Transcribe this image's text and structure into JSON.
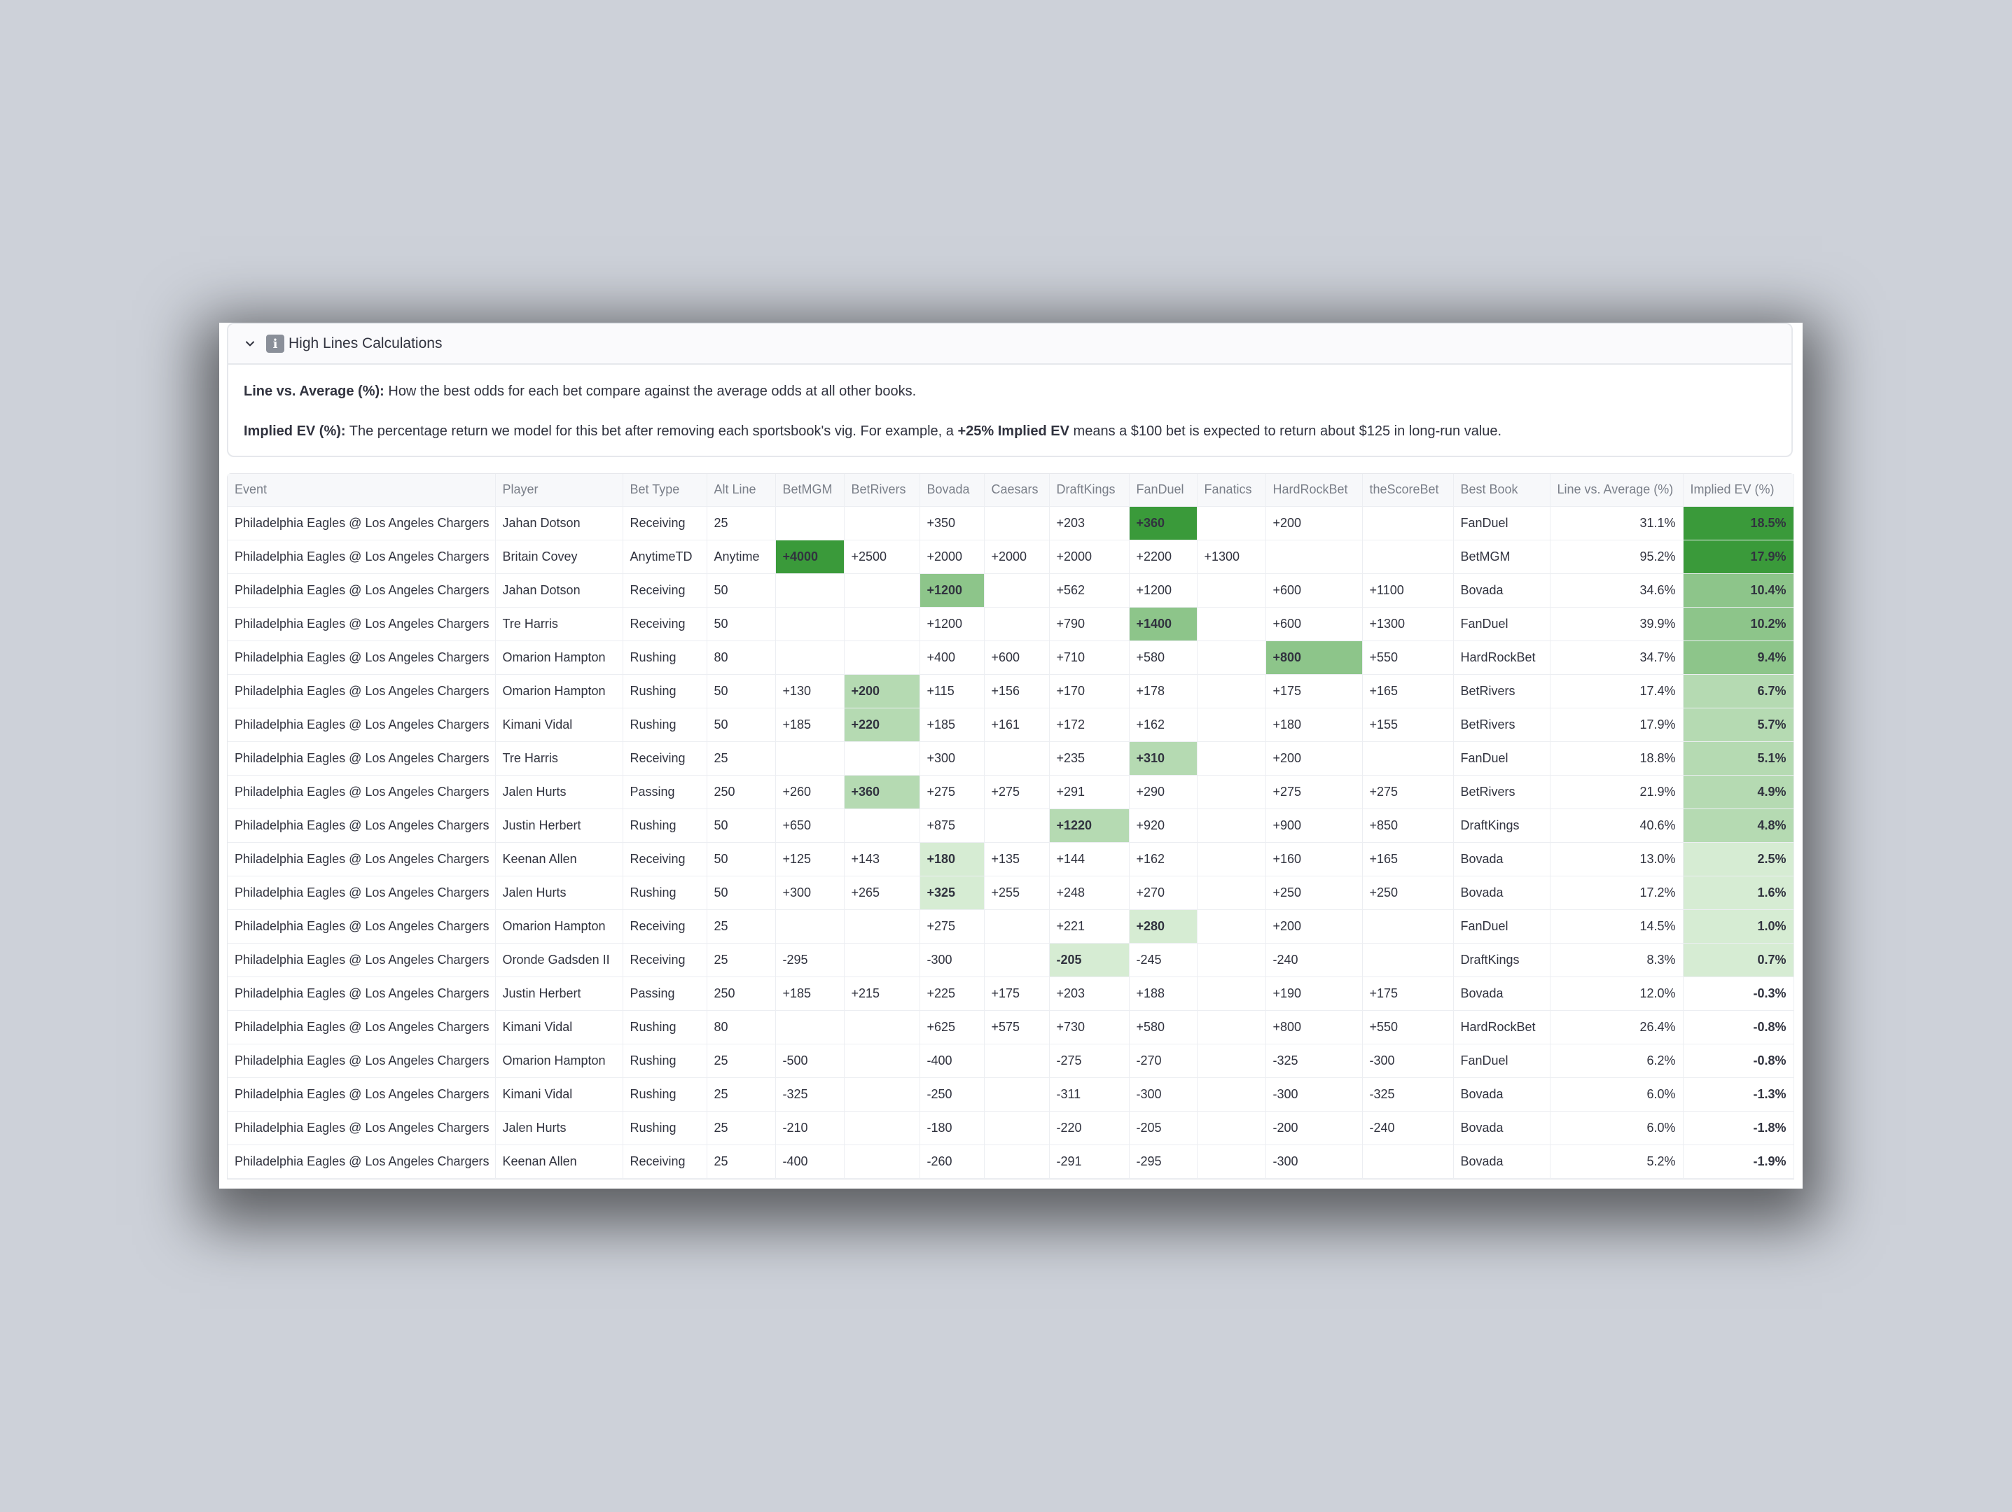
{
  "expander": {
    "title": "High Lines Calculations",
    "icon": "info-icon",
    "line_avg_label": "Line vs. Average (%):",
    "line_avg_text": " How the best odds for each bet compare against the average odds at all other books.",
    "ev_label": "Implied EV (%):",
    "ev_text_1": " The percentage return we model for this bet after removing each sportsbook's vig. For example, a ",
    "ev_text_bold": "+25% Implied EV",
    "ev_text_2": " means a $100 bet is expected to return about $125 in long-run value."
  },
  "table": {
    "columns": [
      "Event",
      "Player",
      "Bet Type",
      "Alt Line",
      "BetMGM",
      "BetRivers",
      "Bovada",
      "Caesars",
      "DraftKings",
      "FanDuel",
      "Fanatics",
      "HardRockBet",
      "theScoreBet",
      "Best Book",
      "Line vs. Average (%)",
      "Implied EV (%)"
    ],
    "book_columns": [
      "BetMGM",
      "BetRivers",
      "Bovada",
      "Caesars",
      "DraftKings",
      "FanDuel",
      "Fanatics",
      "HardRockBet",
      "theScoreBet"
    ],
    "highlight_colors": {
      "dark": "#3a9a3a",
      "medium": "#8dc58a",
      "light": "#b5dab2",
      "pale": "#d6ecd3"
    },
    "rows": [
      {
        "cells": [
          "Philadelphia Eagles @ Los Angeles Chargers",
          "Jahan Dotson",
          "Receiving",
          "25",
          "",
          "",
          "+350",
          "",
          "+203",
          "+360",
          "",
          "+200",
          "",
          "FanDuel",
          "31.1%",
          "18.5%"
        ],
        "best": 9,
        "best_level": "dark",
        "ev_level": "dark"
      },
      {
        "cells": [
          "Philadelphia Eagles @ Los Angeles Chargers",
          "Britain Covey",
          "AnytimeTD",
          "Anytime",
          "+4000",
          "+2500",
          "+2000",
          "+2000",
          "+2000",
          "+2200",
          "+1300",
          "",
          "",
          "BetMGM",
          "95.2%",
          "17.9%"
        ],
        "best": 4,
        "best_level": "dark",
        "ev_level": "dark"
      },
      {
        "cells": [
          "Philadelphia Eagles @ Los Angeles Chargers",
          "Jahan Dotson",
          "Receiving",
          "50",
          "",
          "",
          "+1200",
          "",
          "+562",
          "+1200",
          "",
          "+600",
          "+1100",
          "Bovada",
          "34.6%",
          "10.4%"
        ],
        "best": 6,
        "best_level": "medium",
        "ev_level": "medium"
      },
      {
        "cells": [
          "Philadelphia Eagles @ Los Angeles Chargers",
          "Tre Harris",
          "Receiving",
          "50",
          "",
          "",
          "+1200",
          "",
          "+790",
          "+1400",
          "",
          "+600",
          "+1300",
          "FanDuel",
          "39.9%",
          "10.2%"
        ],
        "best": 9,
        "best_level": "medium",
        "ev_level": "medium"
      },
      {
        "cells": [
          "Philadelphia Eagles @ Los Angeles Chargers",
          "Omarion Hampton",
          "Rushing",
          "80",
          "",
          "",
          "+400",
          "+600",
          "+710",
          "+580",
          "",
          "+800",
          "+550",
          "HardRockBet",
          "34.7%",
          "9.4%"
        ],
        "best": 11,
        "best_level": "medium",
        "ev_level": "medium"
      },
      {
        "cells": [
          "Philadelphia Eagles @ Los Angeles Chargers",
          "Omarion Hampton",
          "Rushing",
          "50",
          "+130",
          "+200",
          "+115",
          "+156",
          "+170",
          "+178",
          "",
          "+175",
          "+165",
          "BetRivers",
          "17.4%",
          "6.7%"
        ],
        "best": 5,
        "best_level": "light",
        "ev_level": "light"
      },
      {
        "cells": [
          "Philadelphia Eagles @ Los Angeles Chargers",
          "Kimani Vidal",
          "Rushing",
          "50",
          "+185",
          "+220",
          "+185",
          "+161",
          "+172",
          "+162",
          "",
          "+180",
          "+155",
          "BetRivers",
          "17.9%",
          "5.7%"
        ],
        "best": 5,
        "best_level": "light",
        "ev_level": "light"
      },
      {
        "cells": [
          "Philadelphia Eagles @ Los Angeles Chargers",
          "Tre Harris",
          "Receiving",
          "25",
          "",
          "",
          "+300",
          "",
          "+235",
          "+310",
          "",
          "+200",
          "",
          "FanDuel",
          "18.8%",
          "5.1%"
        ],
        "best": 9,
        "best_level": "light",
        "ev_level": "light"
      },
      {
        "cells": [
          "Philadelphia Eagles @ Los Angeles Chargers",
          "Jalen Hurts",
          "Passing",
          "250",
          "+260",
          "+360",
          "+275",
          "+275",
          "+291",
          "+290",
          "",
          "+275",
          "+275",
          "BetRivers",
          "21.9%",
          "4.9%"
        ],
        "best": 5,
        "best_level": "light",
        "ev_level": "light"
      },
      {
        "cells": [
          "Philadelphia Eagles @ Los Angeles Chargers",
          "Justin Herbert",
          "Rushing",
          "50",
          "+650",
          "",
          "+875",
          "",
          "+1220",
          "+920",
          "",
          "+900",
          "+850",
          "DraftKings",
          "40.6%",
          "4.8%"
        ],
        "best": 8,
        "best_level": "light",
        "ev_level": "light"
      },
      {
        "cells": [
          "Philadelphia Eagles @ Los Angeles Chargers",
          "Keenan Allen",
          "Receiving",
          "50",
          "+125",
          "+143",
          "+180",
          "+135",
          "+144",
          "+162",
          "",
          "+160",
          "+165",
          "Bovada",
          "13.0%",
          "2.5%"
        ],
        "best": 6,
        "best_level": "pale",
        "ev_level": "pale"
      },
      {
        "cells": [
          "Philadelphia Eagles @ Los Angeles Chargers",
          "Jalen Hurts",
          "Rushing",
          "50",
          "+300",
          "+265",
          "+325",
          "+255",
          "+248",
          "+270",
          "",
          "+250",
          "+250",
          "Bovada",
          "17.2%",
          "1.6%"
        ],
        "best": 6,
        "best_level": "pale",
        "ev_level": "pale"
      },
      {
        "cells": [
          "Philadelphia Eagles @ Los Angeles Chargers",
          "Omarion Hampton",
          "Receiving",
          "25",
          "",
          "",
          "+275",
          "",
          "+221",
          "+280",
          "",
          "+200",
          "",
          "FanDuel",
          "14.5%",
          "1.0%"
        ],
        "best": 9,
        "best_level": "pale",
        "ev_level": "pale"
      },
      {
        "cells": [
          "Philadelphia Eagles @ Los Angeles Chargers",
          "Oronde Gadsden II",
          "Receiving",
          "25",
          "-295",
          "",
          "-300",
          "",
          "-205",
          "-245",
          "",
          "-240",
          "",
          "DraftKings",
          "8.3%",
          "0.7%"
        ],
        "best": 8,
        "best_level": "pale",
        "ev_level": "pale"
      },
      {
        "cells": [
          "Philadelphia Eagles @ Los Angeles Chargers",
          "Justin Herbert",
          "Passing",
          "250",
          "+185",
          "+215",
          "+225",
          "+175",
          "+203",
          "+188",
          "",
          "+190",
          "+175",
          "Bovada",
          "12.0%",
          "-0.3%"
        ],
        "best": -1,
        "best_level": "",
        "ev_level": ""
      },
      {
        "cells": [
          "Philadelphia Eagles @ Los Angeles Chargers",
          "Kimani Vidal",
          "Rushing",
          "80",
          "",
          "",
          "+625",
          "+575",
          "+730",
          "+580",
          "",
          "+800",
          "+550",
          "HardRockBet",
          "26.4%",
          "-0.8%"
        ],
        "best": -1,
        "best_level": "",
        "ev_level": ""
      },
      {
        "cells": [
          "Philadelphia Eagles @ Los Angeles Chargers",
          "Omarion Hampton",
          "Rushing",
          "25",
          "-500",
          "",
          "-400",
          "",
          "-275",
          "-270",
          "",
          "-325",
          "-300",
          "FanDuel",
          "6.2%",
          "-0.8%"
        ],
        "best": -1,
        "best_level": "",
        "ev_level": ""
      },
      {
        "cells": [
          "Philadelphia Eagles @ Los Angeles Chargers",
          "Kimani Vidal",
          "Rushing",
          "25",
          "-325",
          "",
          "-250",
          "",
          "-311",
          "-300",
          "",
          "-300",
          "-325",
          "Bovada",
          "6.0%",
          "-1.3%"
        ],
        "best": -1,
        "best_level": "",
        "ev_level": ""
      },
      {
        "cells": [
          "Philadelphia Eagles @ Los Angeles Chargers",
          "Jalen Hurts",
          "Rushing",
          "25",
          "-210",
          "",
          "-180",
          "",
          "-220",
          "-205",
          "",
          "-200",
          "-240",
          "Bovada",
          "6.0%",
          "-1.8%"
        ],
        "best": -1,
        "best_level": "",
        "ev_level": ""
      },
      {
        "cells": [
          "Philadelphia Eagles @ Los Angeles Chargers",
          "Keenan Allen",
          "Receiving",
          "25",
          "-400",
          "",
          "-260",
          "",
          "-291",
          "-295",
          "",
          "-300",
          "",
          "Bovada",
          "5.2%",
          "-1.9%"
        ],
        "best": -1,
        "best_level": "",
        "ev_level": ""
      }
    ]
  }
}
